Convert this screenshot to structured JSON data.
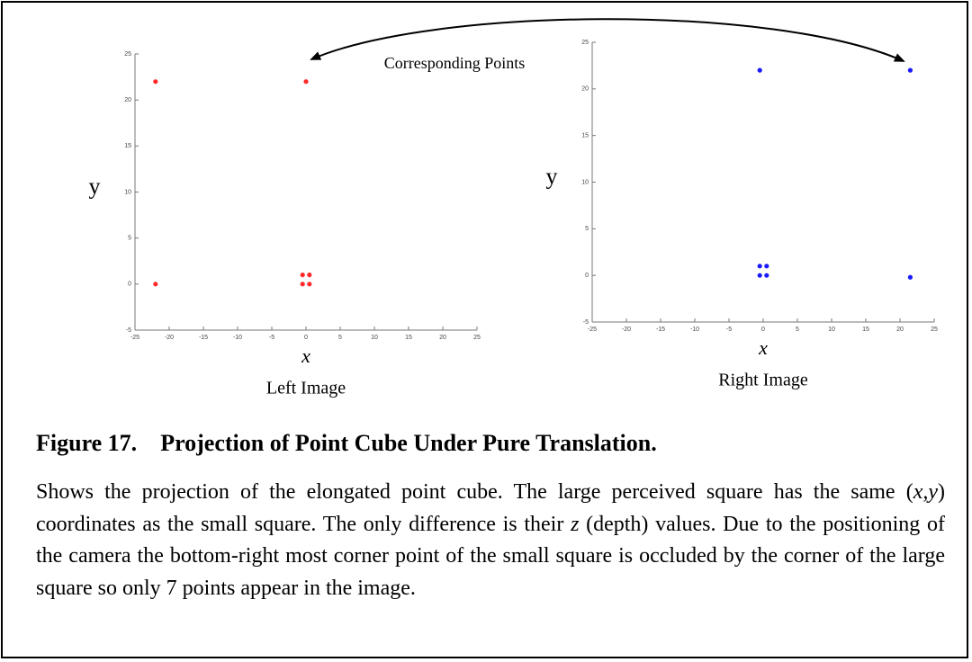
{
  "chart_data": [
    {
      "type": "scatter",
      "x_label": "x",
      "y_label": "y",
      "caption": "Left Image",
      "color": "#ff2a2a",
      "x": [
        -22,
        0,
        -22,
        -0.5,
        0.5,
        -0.5,
        0.5
      ],
      "values": [
        22,
        22,
        0,
        1,
        1,
        0,
        0
      ],
      "xlim": [
        -25,
        25
      ],
      "ylim": [
        -5,
        25
      ],
      "xticks": [
        -25,
        -20,
        -15,
        -10,
        -5,
        0,
        5,
        10,
        15,
        20,
        25
      ],
      "yticks": [
        -5,
        0,
        5,
        10,
        15,
        20,
        25
      ]
    },
    {
      "type": "scatter",
      "x_label": "x",
      "y_label": "y",
      "caption": "Right Image",
      "color": "#1a1aff",
      "x": [
        -0.5,
        21.5,
        21.5,
        -0.5,
        0.5,
        -0.5,
        0.5
      ],
      "values": [
        22,
        22,
        -0.2,
        1,
        1,
        0,
        0
      ],
      "xlim": [
        -25,
        25
      ],
      "ylim": [
        -5,
        25
      ],
      "xticks": [
        -25,
        -20,
        -15,
        -10,
        -5,
        0,
        5,
        10,
        15,
        20,
        25
      ],
      "yticks": [
        -5,
        0,
        5,
        10,
        15,
        20,
        25
      ]
    }
  ],
  "annotation": "Corresponding Points",
  "figure": {
    "number": "Figure 17.",
    "title": "Projection of Point Cube Under Pure Translation."
  },
  "body": [
    "Shows the projection of the elongated point cube. The large perceived square has the same (",
    "x,y",
    ") coordinates as the small square. The only difference is their ",
    "z",
    " (depth) values. Due to the positioning of the camera the bottom-right most corner point of the small square is occluded by the corner of the large square so only 7 points appear in the image."
  ]
}
